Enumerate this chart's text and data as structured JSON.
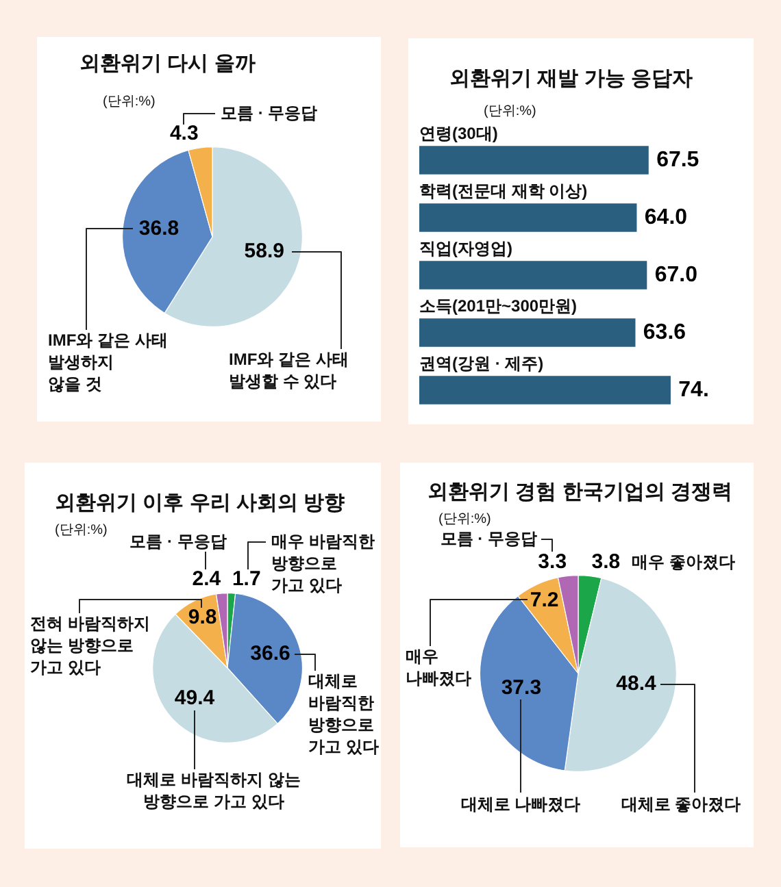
{
  "chart_data": [
    {
      "type": "pie",
      "title": "외환위기 다시 올까",
      "subtitle": "(단위:%)",
      "categories": [
        "IMF와 같은 사태 발생할 수 있다",
        "IMF와 같은 사태 발생하지 않을 것",
        "모름 · 무응답"
      ],
      "values": [
        58.9,
        36.8,
        4.3
      ],
      "colors": [
        "#c6dce3",
        "#5a87c5",
        "#f4b04b"
      ],
      "data_labels": true
    },
    {
      "type": "bar",
      "orientation": "horizontal",
      "title": "외환위기 재발 가능 응답자",
      "subtitle": "(단위:%)",
      "categories": [
        "연령(30대)",
        "학력(전문대 재학 이상)",
        "직업(자영업)",
        "소득(201만~300만원)",
        "권역(강원 · 제주)"
      ],
      "values": [
        67.5,
        64.0,
        67.0,
        63.6,
        74
      ],
      "value_labels": [
        "67.5",
        "64.0",
        "67.0",
        "63.6",
        "74."
      ],
      "color": "#2b5f80"
    },
    {
      "type": "pie",
      "title": "외환위기 이후 우리 사회의 방향",
      "subtitle": "(단위:%)",
      "categories": [
        "매우 바람직한 방향으로 가고 있다",
        "대체로 바람직한 방향으로 가고 있다",
        "대체로 바람직하지 않는 방향으로 가고 있다",
        "전혀 바람직하지 않는 방향으로 가고 있다",
        "모름 · 무응답"
      ],
      "values": [
        1.7,
        36.6,
        49.4,
        9.8,
        2.4
      ],
      "colors": [
        "#1ca64a",
        "#5a87c5",
        "#c6dce3",
        "#f4b04b",
        "#b067b4"
      ],
      "data_labels": true
    },
    {
      "type": "pie",
      "title": "외환위기 경험 한국기업의 경쟁력",
      "subtitle": "(단위:%)",
      "categories": [
        "매우 좋아졌다",
        "대체로 좋아졌다",
        "대체로 나빠졌다",
        "매우 나빠졌다",
        "모름 · 무응답"
      ],
      "values": [
        3.8,
        48.4,
        37.3,
        7.2,
        3.3
      ],
      "colors": [
        "#1ca64a",
        "#c6dce3",
        "#5a87c5",
        "#f4b04b",
        "#b067b4"
      ],
      "data_labels": true
    }
  ]
}
